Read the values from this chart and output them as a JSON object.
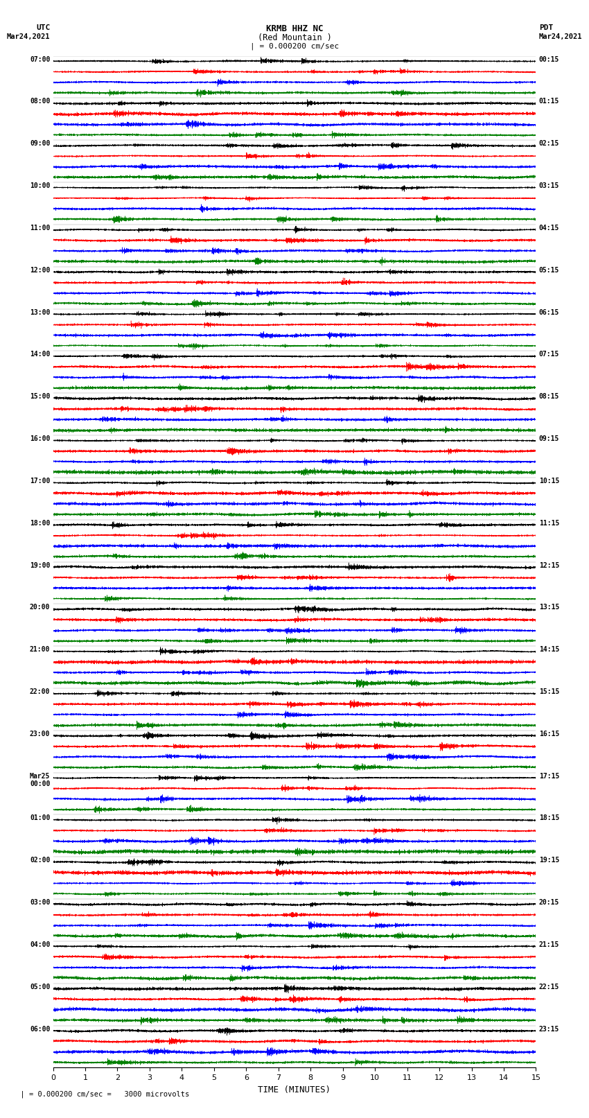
{
  "title_line1": "KRMB HHZ NC",
  "title_line2": "(Red Mountain )",
  "scale_text": "| = 0.000200 cm/sec",
  "bottom_scale_text": "= 0.000200 cm/sec =   3000 microvolts",
  "xlabel": "TIME (MINUTES)",
  "left_label_top": "UTC",
  "left_label_date": "Mar24,2021",
  "right_label_top": "PDT",
  "right_label_date": "Mar24,2021",
  "left_times": [
    "07:00",
    "08:00",
    "09:00",
    "10:00",
    "11:00",
    "12:00",
    "13:00",
    "14:00",
    "15:00",
    "16:00",
    "17:00",
    "18:00",
    "19:00",
    "20:00",
    "21:00",
    "22:00",
    "23:00",
    "Mar25\n00:00",
    "01:00",
    "02:00",
    "03:00",
    "04:00",
    "05:00",
    "06:00"
  ],
  "right_times": [
    "00:15",
    "01:15",
    "02:15",
    "03:15",
    "04:15",
    "05:15",
    "06:15",
    "07:15",
    "08:15",
    "09:15",
    "10:15",
    "11:15",
    "12:15",
    "13:15",
    "14:15",
    "15:15",
    "16:15",
    "17:15",
    "18:15",
    "19:15",
    "20:15",
    "21:15",
    "22:15",
    "23:15"
  ],
  "n_rows": 24,
  "traces_per_row": 4,
  "colors": [
    "black",
    "red",
    "blue",
    "green"
  ],
  "fig_width": 8.5,
  "fig_height": 16.13,
  "dpi": 100,
  "x_ticks": [
    0,
    1,
    2,
    3,
    4,
    5,
    6,
    7,
    8,
    9,
    10,
    11,
    12,
    13,
    14,
    15
  ],
  "x_min": 0,
  "x_max": 15,
  "bg_color": "white",
  "noise_seed": 42
}
